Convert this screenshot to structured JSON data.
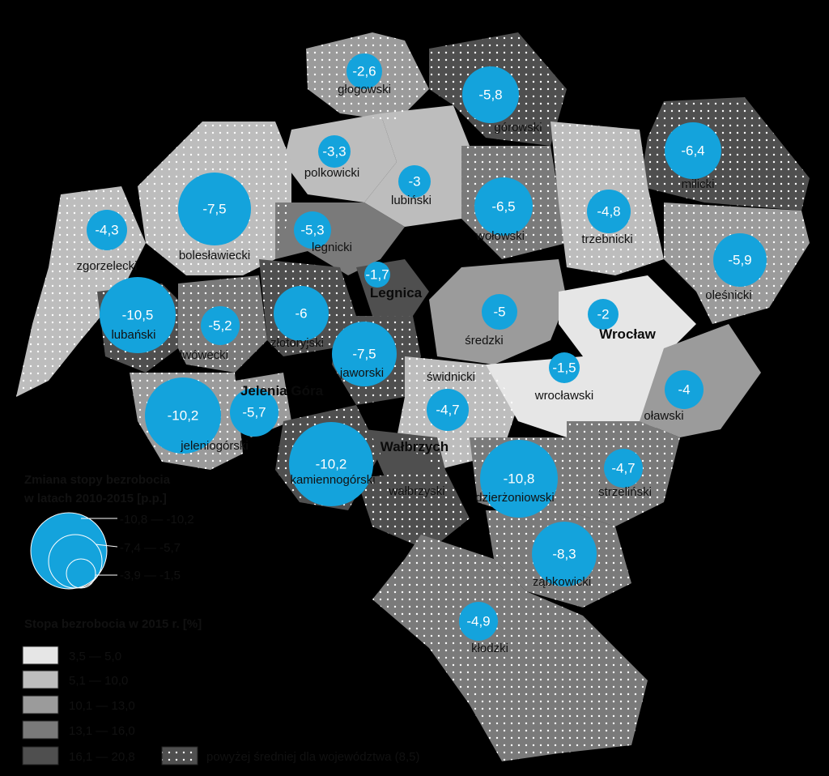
{
  "colors": {
    "background": "#000000",
    "bubble": "#14a3dc",
    "class_1": "#e6e6e6",
    "class_2": "#bdbdbd",
    "class_3": "#9b9b9b",
    "class_4": "#7a7a7a",
    "class_5": "#4f4f4f",
    "dots": "#ffffff"
  },
  "regions": [
    {
      "name": "głogowski",
      "change": "-2,6"
    },
    {
      "name": "górowski",
      "change": "-5,8"
    },
    {
      "name": "polkowicki",
      "change": "-3,3"
    },
    {
      "name": "lubiński",
      "change": "-3"
    },
    {
      "name": "milicki",
      "change": "-6,4"
    },
    {
      "name": "bolesławiecki",
      "change": "-7,5"
    },
    {
      "name": "wołowski",
      "change": "-6,5"
    },
    {
      "name": "trzebnicki",
      "change": "-4,8"
    },
    {
      "name": "zgorzelecki",
      "change": "-4,3"
    },
    {
      "name": "legnicki",
      "change": "-5,3"
    },
    {
      "name": "oleśnicki",
      "change": "-5,9"
    },
    {
      "name": "Legnica",
      "change": "-1,7"
    },
    {
      "name": "lubański",
      "change": "-10,5"
    },
    {
      "name": "lwówecki",
      "change": "-5,2"
    },
    {
      "name": "złotoryjski",
      "change": "-6"
    },
    {
      "name": "średzki",
      "change": "-5"
    },
    {
      "name": "Wrocław",
      "change": "-2"
    },
    {
      "name": "jaworski",
      "change": "-7,5"
    },
    {
      "name": "świdnicki",
      "change": "-4,7"
    },
    {
      "name": "wrocławski",
      "change": "-1,5"
    },
    {
      "name": "oławski",
      "change": "-4"
    },
    {
      "name": "Jelenia Góra",
      "change": "-5,7"
    },
    {
      "name": "jeleniogórski",
      "change": "-10,2"
    },
    {
      "name": "Wałbrzych",
      "change": ""
    },
    {
      "name": "kamiennogórski",
      "change": "-10,2"
    },
    {
      "name": "wałbrzyski",
      "change": ""
    },
    {
      "name": "dzierżoniowski",
      "change": "-10,8"
    },
    {
      "name": "strzeliński",
      "change": "-4,7"
    },
    {
      "name": "ząbkowicki",
      "change": "-8,3"
    },
    {
      "name": "kłodzki",
      "change": "-4,9"
    }
  ],
  "legend": {
    "bubble_title_line1": "Zmiana stopy bezrobocia",
    "bubble_title_line2": "w latach 2010-2015 [p.p.]",
    "bubble_classes": [
      "-10,8 — -10,2",
      "-7,4 — -5,7",
      "-3,9 — -1,5"
    ],
    "rate_title": "Stopa bezrobocia w 2015 r. [%]",
    "rate_classes": [
      "3,5 — 5,0",
      "5,1 — 10,0",
      "10,1 — 13,0",
      "13,1 — 16,0",
      "16,1 — 20,8"
    ],
    "dots_label": "powyżej średniej dla województwa (8,5)"
  }
}
